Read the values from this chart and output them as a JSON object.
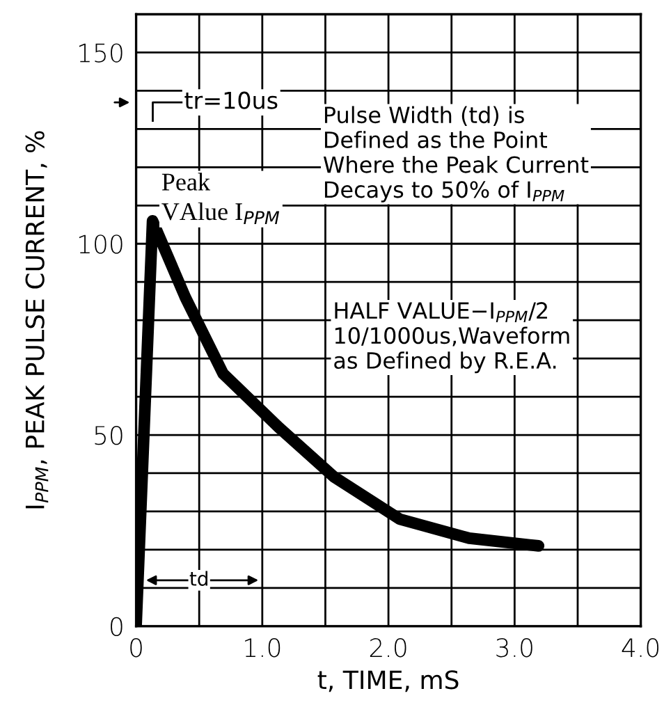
{
  "chart_data": {
    "type": "line",
    "xlabel": "t, TIME, mS",
    "ylabel": "I$_{PPM}$, PEAK PULSE CURRENT, %",
    "x": [
      0,
      0.13,
      0.39,
      0.69,
      1.13,
      1.57,
      2.09,
      2.64,
      3.19
    ],
    "series": [
      {
        "color": "#000000",
        "values": [
          0,
          106,
          86,
          66,
          52,
          39,
          28,
          23,
          21
        ]
      }
    ],
    "xlim": [
      0,
      4.0
    ],
    "xticks": [
      0,
      {
        "value": 0.5,
        "label": null
      },
      {
        "value": 1.0,
        "label": "1.0"
      },
      {
        "value": 1.5,
        "label": null
      },
      {
        "value": 2.0,
        "label": "2.0"
      },
      {
        "value": 2.5,
        "label": null
      },
      {
        "value": 3.0,
        "label": "3.0"
      },
      {
        "value": 3.5,
        "label": null
      },
      {
        "value": 4.0,
        "label": "4.0"
      }
    ],
    "ylim": [
      0,
      160
    ],
    "yticks": [
      0,
      {
        "value": 10,
        "label": null
      },
      {
        "value": 20,
        "label": null
      },
      {
        "value": 30,
        "label": null
      },
      {
        "value": 40,
        "label": null
      },
      50,
      {
        "value": 60,
        "label": null
      },
      {
        "value": 70,
        "label": null
      },
      {
        "value": 80,
        "label": null
      },
      {
        "value": 90,
        "label": null
      },
      100,
      {
        "value": 110,
        "label": null
      },
      {
        "value": 120,
        "label": null
      },
      {
        "value": 130,
        "label": null
      },
      {
        "value": 140,
        "label": null
      },
      150
    ],
    "grid": true,
    "line_style": "solid",
    "marker": "none",
    "annotations": [
      "Peak\nVAlue I$_{PPM}$",
      "tr=10us",
      "Pulse Width (td) is\nDefined as the Point\nWhere the Peak Current\nDecays to 50% of I$_{PPM}$",
      "HALF VALUE−I$_{PPM}$/2\n10/1000us,Waveform\nas Defined by R.E.A.",
      "td"
    ]
  }
}
